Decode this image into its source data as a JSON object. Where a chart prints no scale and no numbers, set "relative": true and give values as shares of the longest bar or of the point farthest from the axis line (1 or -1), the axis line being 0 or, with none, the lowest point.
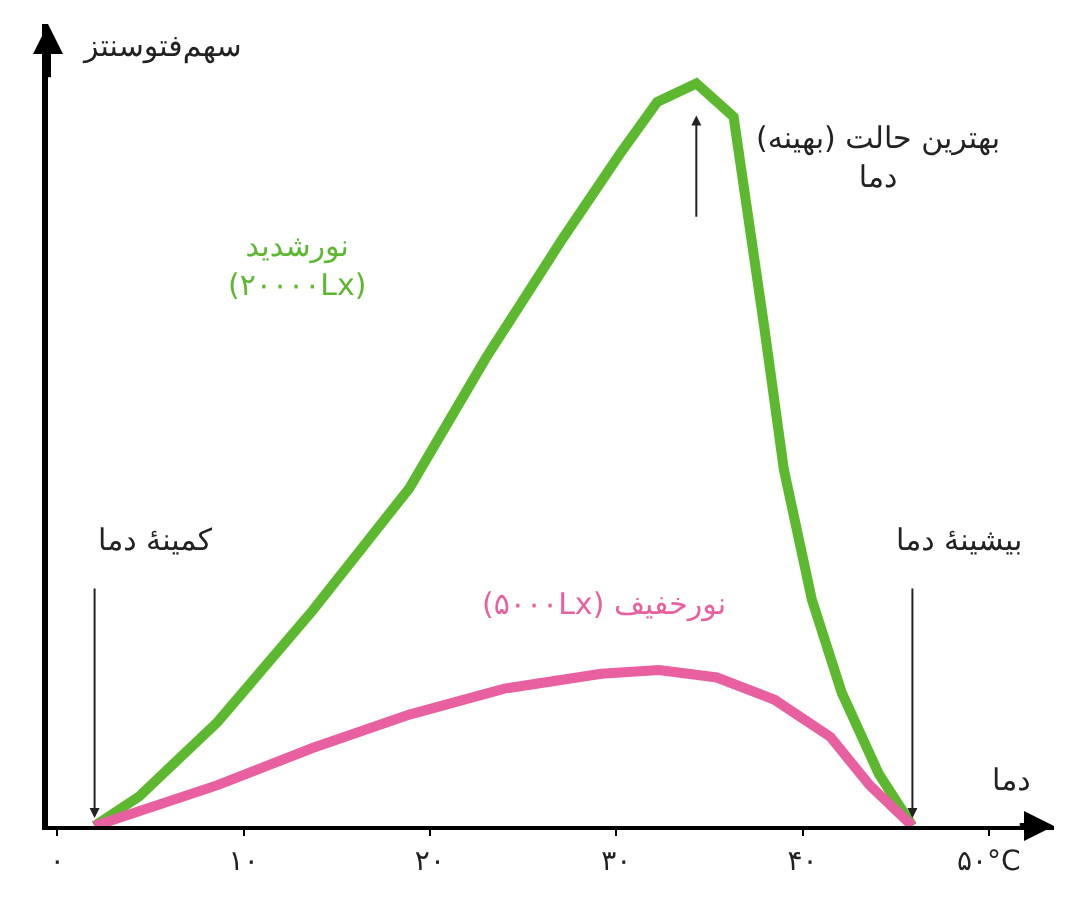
{
  "chart_data": {
    "type": "line",
    "relative": true,
    "ylabel": "سهم‌فتوسنتز",
    "xlabel": "دما",
    "xlim": [
      -0.5,
      53.5
    ],
    "xticks": [
      {
        "value": 0,
        "label": "۰"
      },
      {
        "value": 10,
        "label": "۱۰"
      },
      {
        "value": 20,
        "label": "۲۰"
      },
      {
        "value": 30,
        "label": "۳۰"
      },
      {
        "value": 40,
        "label": "۴۰"
      },
      {
        "value": 50,
        "label": "۵۰°C"
      }
    ],
    "legend": false,
    "marker": "none",
    "line_style": "solid",
    "series": [
      {
        "name": "نورشدید (۲۰۰۰۰Lx)",
        "color": "#5cb82e",
        "x": [
          2,
          4.4,
          8.6,
          13.7,
          18.9,
          23,
          27.1,
          30.2,
          32.2,
          34.3,
          36.3,
          37.9,
          39,
          40.5,
          42.1,
          44.1,
          45.9
        ],
        "values": [
          0,
          0.04,
          0.14,
          0.29,
          0.455,
          0.63,
          0.79,
          0.905,
          0.975,
          1,
          0.955,
          0.68,
          0.48,
          0.305,
          0.18,
          0.07,
          0
        ]
      },
      {
        "name": "(۵۰۰۰Lx) نورخفیف",
        "color": "#e8609f",
        "x": [
          2,
          8.6,
          13.7,
          18.9,
          24,
          29.2,
          32.3,
          35.4,
          38.5,
          41.5,
          43.6,
          45.9
        ],
        "values": [
          0,
          0.055,
          0.105,
          0.15,
          0.185,
          0.205,
          0.21,
          0.2,
          0.17,
          0.12,
          0.055,
          0
        ]
      }
    ],
    "annotations": [
      {
        "text": "بهترین حالت (بهینه) دما",
        "x": 34.3,
        "y": 1
      },
      {
        "text": "کمینهٔ دما",
        "x": 2,
        "y": 0
      },
      {
        "text": "بیشینهٔ دما",
        "x": 45.9,
        "y": 0
      }
    ]
  }
}
